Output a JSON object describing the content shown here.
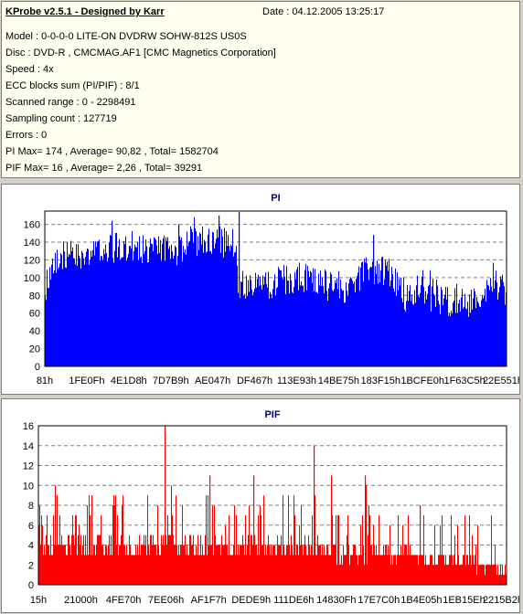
{
  "info": {
    "title": "KProbe v2.5.1 - Designed by Karr",
    "date": "Date : 04.12.2005 13:25:17",
    "lines": [
      "Model : 0-0-0-0 LITE-ON DVDRW SOHW-812S  US0S",
      "Disc : DVD-R , CMCMAG.AF1 [CMC Magnetics Corporation]",
      "Speed : 4x",
      "ECC blocks sum (PI/PIF) : 8/1",
      "Scanned range : 0 - 2298491",
      "Sampling count : 127719",
      "Errors : 0",
      "PI Max= 174 , Average= 90,82 , Total= 1582704",
      "PIF Max= 16 , Average= 2,26 , Total= 39291"
    ]
  },
  "chart_data": [
    {
      "type": "area",
      "title": "PI",
      "color": "#0000ff",
      "ylim": [
        0,
        175
      ],
      "yticks": [
        0,
        20,
        40,
        60,
        80,
        100,
        120,
        140,
        160
      ],
      "xticks": [
        "81h",
        "1FE0Fh",
        "4E1D8h",
        "7D7B9h",
        "AE047h",
        "DF467h",
        "113E93h",
        "14BE75h",
        "183F15h",
        "1BCFE0h",
        "1F63C5h",
        "22E551h"
      ],
      "grid": true,
      "profile": {
        "x": [
          0,
          0.02,
          0.05,
          0.08,
          0.12,
          0.2,
          0.28,
          0.34,
          0.37,
          0.41,
          0.42,
          0.5,
          0.55,
          0.6,
          0.65,
          0.7,
          0.74,
          0.78,
          0.8,
          0.84,
          0.88,
          0.92,
          0.95,
          0.97,
          0.99,
          1.0
        ],
        "y": [
          105,
          140,
          140,
          145,
          150,
          150,
          150,
          160,
          160,
          158,
          108,
          112,
          120,
          112,
          105,
          128,
          125,
          98,
          102,
          98,
          92,
          90,
          95,
          115,
          105,
          90
        ]
      },
      "spikes": [
        [
          0.4198,
          174
        ],
        [
          0.376,
          170
        ],
        [
          0.71,
          148
        ],
        [
          0.29,
          160
        ],
        [
          0.145,
          164
        ]
      ]
    },
    {
      "type": "area",
      "title": "PIF",
      "color": "#ff0000",
      "ylim": [
        0,
        16
      ],
      "yticks": [
        0,
        2,
        4,
        6,
        8,
        10,
        12,
        14,
        16
      ],
      "xticks": [
        "15h",
        "21000h",
        "4FE70h",
        "7EE06h",
        "AF1F7h",
        "DEDE9h",
        "111DE6h",
        "14830Fh",
        "17E7C0h",
        "1B4E05h",
        "1EB15Eh",
        "2215B2h"
      ],
      "grid": true,
      "profile": {
        "x": [
          0,
          0.25,
          0.5,
          0.62,
          0.64,
          0.7,
          0.8,
          0.9,
          0.94,
          0.96,
          1.0
        ],
        "y": [
          5,
          5,
          5,
          4.5,
          4,
          4,
          3.5,
          3,
          2.5,
          2.2,
          2
        ]
      },
      "spikes": [
        [
          0.2686,
          16
        ],
        [
          0.588,
          14
        ],
        [
          0.1136,
          9
        ],
        [
          0.3661,
          11
        ],
        [
          0.4588,
          11
        ],
        [
          0.6254,
          11
        ],
        [
          0.6976,
          11
        ],
        [
          0.6986,
          10
        ],
        [
          0.0345,
          9
        ],
        [
          0.8154,
          8
        ]
      ]
    }
  ]
}
